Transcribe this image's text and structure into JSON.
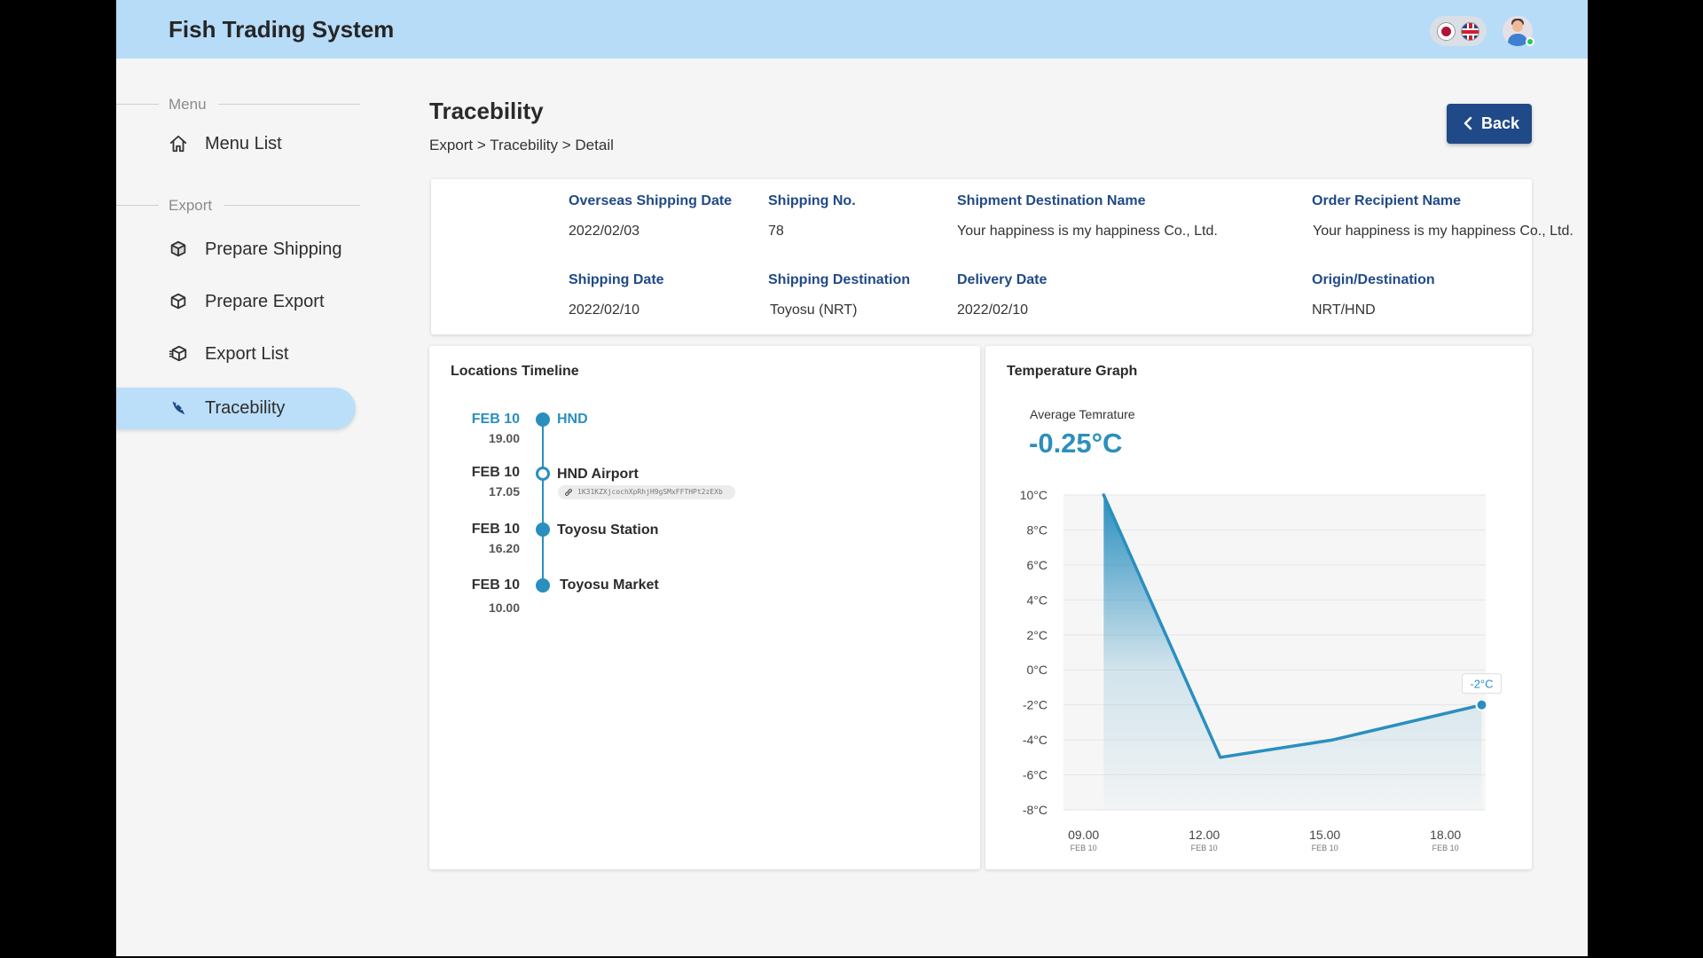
{
  "header": {
    "app_title": "Fish Trading System"
  },
  "sidebar": {
    "menu_section": "Menu",
    "menu_items": [
      {
        "label": "Menu List",
        "icon": "home-icon"
      }
    ],
    "export_section": "Export",
    "export_items": [
      {
        "label": "Prepare Shipping",
        "icon": "box-icon"
      },
      {
        "label": "Prepare Export",
        "icon": "box-icon"
      },
      {
        "label": "Export List",
        "icon": "box-list-icon"
      },
      {
        "label": "Tracebility",
        "icon": "fish-icon",
        "active": true
      }
    ]
  },
  "page": {
    "title": "Tracebility",
    "breadcrumb": "Export > Tracebility > Detail",
    "back_label": "Back"
  },
  "info": {
    "overseas_shipping_date": {
      "label": "Overseas Shipping Date",
      "value": "2022/02/03"
    },
    "shipping_no": {
      "label": "Shipping No.",
      "value": "78"
    },
    "shipment_destination_name": {
      "label": "Shipment Destination Name",
      "value": "Your happiness is my happiness Co., Ltd."
    },
    "order_recipient_name": {
      "label": "Order Recipient Name",
      "value": "Your happiness is my happiness Co., Ltd."
    },
    "shipping_date": {
      "label": "Shipping Date",
      "value": "2022/02/10"
    },
    "shipping_destination": {
      "label": "Shipping Destination",
      "value": "Toyosu (NRT)"
    },
    "delivery_date": {
      "label": "Delivery Date",
      "value": "2022/02/10"
    },
    "origin_destination": {
      "label": "Origin/Destination",
      "value": "NRT/HND"
    }
  },
  "timeline": {
    "title": "Locations Timeline",
    "events": [
      {
        "date": "FEB 10",
        "time": "19.00",
        "place": "HND"
      },
      {
        "date": "FEB 10",
        "time": "17.05",
        "place": "HND Airport",
        "hash": "1K31KZXjcochXpRhjH9gSMxFFTHPt2zEXb"
      },
      {
        "date": "FEB 10",
        "time": "16.20",
        "place": "Toyosu Station"
      },
      {
        "date": "FEB 10",
        "time": "10.00",
        "place": "Toyosu Market"
      }
    ]
  },
  "graph": {
    "title": "Temperature Graph",
    "avg_label": "Average Temrature",
    "avg_value": "-0.25°C"
  },
  "chart_data": {
    "type": "area",
    "title": "Temperature Graph",
    "x_ticks": [
      {
        "label": "09.00",
        "sub": "FEB 10",
        "value": 9.0
      },
      {
        "label": "12.00",
        "sub": "FEB 10",
        "value": 12.0
      },
      {
        "label": "15.00",
        "sub": "FEB 10",
        "value": 15.0
      },
      {
        "label": "18.00",
        "sub": "FEB 10",
        "value": 18.0
      }
    ],
    "y_ticks": [
      "10°C",
      "8°C",
      "6°C",
      "4°C",
      "2°C",
      "0°C",
      "-2°C",
      "-4°C",
      "-6°C",
      "-8°C"
    ],
    "ylim": [
      -8,
      10
    ],
    "xlim": [
      8.5,
      19.0
    ],
    "series": [
      {
        "x": [
          9.5,
          12.4,
          15.2,
          18.9
        ],
        "y": [
          10,
          -5,
          -4,
          -2
        ]
      }
    ],
    "annotation": {
      "label": "-2°C"
    },
    "colors": {
      "line": "#2a8fbf",
      "fill_top": "#2a8fbf",
      "grid": "#e6e6e6"
    }
  }
}
